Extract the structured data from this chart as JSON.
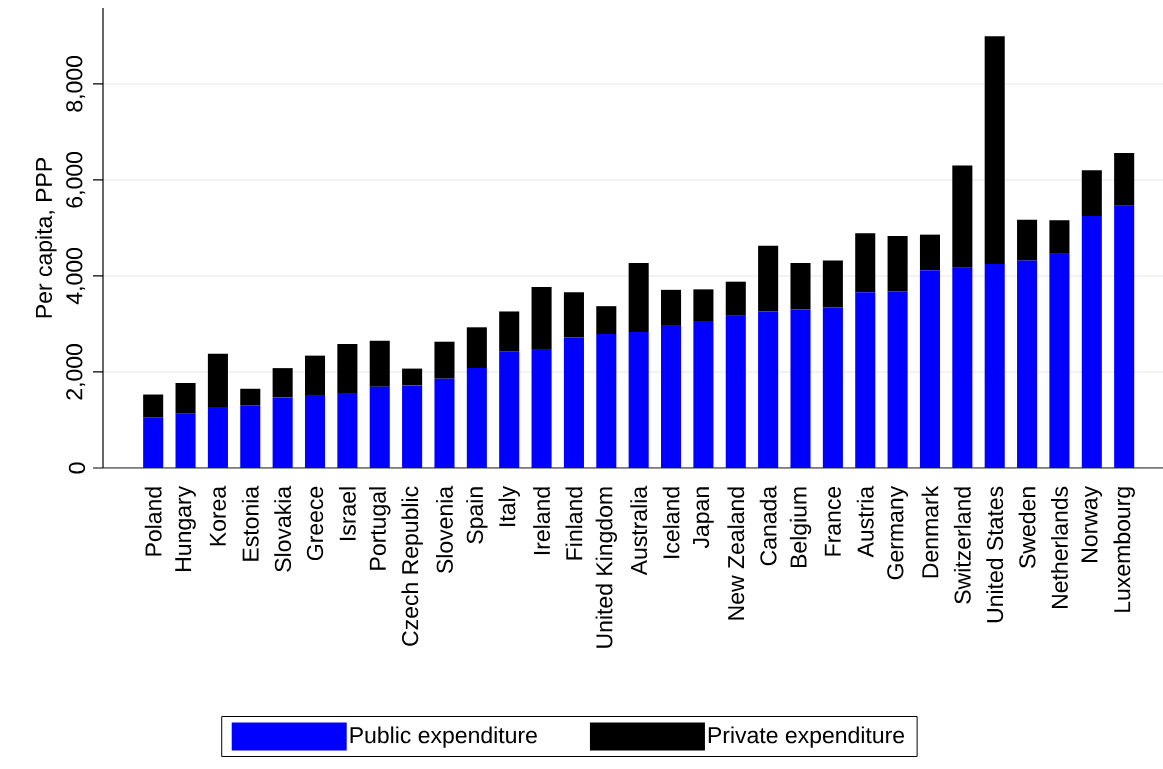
{
  "chart_data": {
    "type": "bar",
    "ylabel": "Per capita, PPP",
    "categories": [
      "Poland",
      "Hungary",
      "Korea",
      "Estonia",
      "Slovakia",
      "Greece",
      "Israel",
      "Portugal",
      "Czech Republic",
      "Slovenia",
      "Spain",
      "Italy",
      "Ireland",
      "Finland",
      "United Kingdom",
      "Australia",
      "Iceland",
      "Japan",
      "New Zealand",
      "Canada",
      "Belgium",
      "France",
      "Austria",
      "Germany",
      "Denmark",
      "Switzerland",
      "United States",
      "Sweden",
      "Netherlands",
      "Norway",
      "Luxembourg"
    ],
    "series": [
      {
        "name": "Public expenditure",
        "color": "#0000ff",
        "values": [
          1050,
          1130,
          1270,
          1300,
          1470,
          1520,
          1560,
          1690,
          1720,
          1860,
          2080,
          2430,
          2480,
          2720,
          2790,
          2830,
          2960,
          3060,
          3170,
          3260,
          3300,
          3340,
          3660,
          3680,
          4120,
          4170,
          4250,
          4320,
          4460,
          5250,
          5460
        ]
      },
      {
        "name": "Private expenditure",
        "color": "#000000",
        "values": [
          480,
          640,
          1110,
          350,
          610,
          820,
          1020,
          960,
          350,
          770,
          850,
          830,
          1290,
          940,
          580,
          1440,
          750,
          660,
          710,
          1370,
          970,
          980,
          1230,
          1150,
          740,
          2130,
          4740,
          850,
          700,
          950,
          1100
        ]
      }
    ],
    "stacked": true,
    "ylim": [
      0,
      9580
    ],
    "yticks": [
      0,
      {
        "value": 2000,
        "label": "2,000"
      },
      {
        "value": 4000,
        "label": "4,000"
      },
      {
        "value": 6000,
        "label": "6,000"
      },
      {
        "value": 8000,
        "label": "8,000"
      }
    ],
    "grid": "y",
    "legend": "bottom"
  }
}
